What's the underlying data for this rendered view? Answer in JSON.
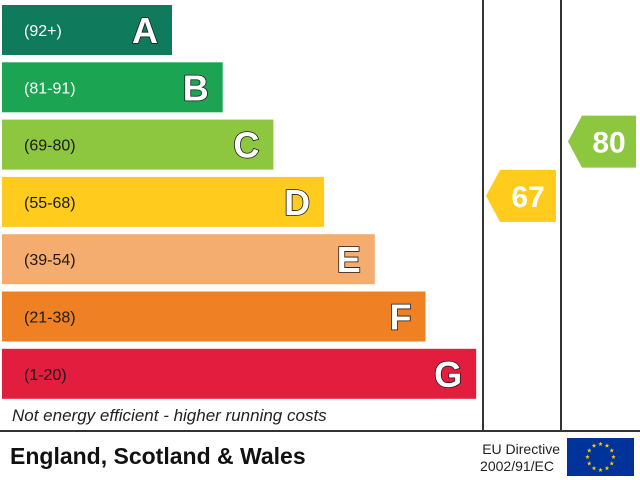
{
  "chart_data": {
    "type": "bar",
    "bands": [
      {
        "letter": "A",
        "range": "(92+)",
        "color": "#0f7b5c",
        "range_color": "#ffffff"
      },
      {
        "letter": "B",
        "range": "(81-91)",
        "color": "#1ba553",
        "range_color": "#ffffff"
      },
      {
        "letter": "C",
        "range": "(69-80)",
        "color": "#8dc63f",
        "range_color": "#1a1a1a"
      },
      {
        "letter": "D",
        "range": "(55-68)",
        "color": "#ffcc1d",
        "range_color": "#1a1a1a"
      },
      {
        "letter": "E",
        "range": "(39-54)",
        "color": "#f5ad6f",
        "range_color": "#1a1a1a"
      },
      {
        "letter": "F",
        "range": "(21-38)",
        "color": "#ef8124",
        "range_color": "#1a1a1a"
      },
      {
        "letter": "G",
        "range": "(1-20)",
        "color": "#e31d3e",
        "range_color": "#1a1a1a"
      }
    ],
    "ratings": [
      {
        "value": 67,
        "band": "D",
        "color": "#ffcc1d"
      },
      {
        "value": 80,
        "band": "C",
        "color": "#8dc63f"
      }
    ]
  },
  "footer": {
    "note": "Not energy efficient - higher running costs",
    "region": "England, Scotland & Wales",
    "directive_line1": "EU Directive",
    "directive_line2": "2002/91/EC"
  },
  "flag": {
    "background": "#003399",
    "stars": "#ffcc00",
    "name": "eu-flag-icon"
  }
}
